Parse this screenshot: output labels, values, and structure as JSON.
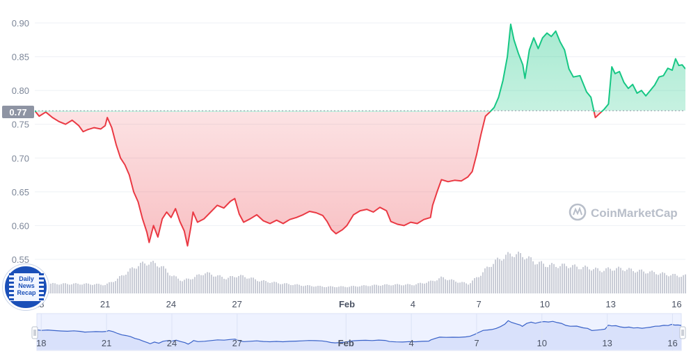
{
  "current_price_label": "0.77",
  "watermark": "CoinMarketCap",
  "badge": {
    "lines": [
      "Daily",
      "News",
      "Recap"
    ]
  },
  "colors": {
    "up": "#16c784",
    "down": "#ea3943",
    "volume": "#c9ccd6",
    "nav_fill": "#d9e1fb",
    "nav_line": "#3861c8"
  },
  "chart_data": {
    "type": "line",
    "ylim": [
      0.55,
      0.9
    ],
    "yticks": [
      "0.55",
      "0.60",
      "0.65",
      "0.70",
      "0.75",
      "0.80",
      "0.85",
      "0.90"
    ],
    "baseline": 0.77,
    "x_ticks": [
      {
        "label": "18",
        "day": 18
      },
      {
        "label": "21",
        "day": 21
      },
      {
        "label": "24",
        "day": 24
      },
      {
        "label": "27",
        "day": 27
      },
      {
        "label": "Feb",
        "day": 32
      },
      {
        "label": "4",
        "day": 35
      },
      {
        "label": "7",
        "day": 38
      },
      {
        "label": "10",
        "day": 41
      },
      {
        "label": "13",
        "day": 44
      },
      {
        "label": "16",
        "day": 47
      }
    ],
    "xlim": [
      17.8,
      47.4
    ],
    "price": [
      [
        17.8,
        0.77
      ],
      [
        18.0,
        0.762
      ],
      [
        18.3,
        0.768
      ],
      [
        18.6,
        0.76
      ],
      [
        18.9,
        0.754
      ],
      [
        19.2,
        0.75
      ],
      [
        19.5,
        0.756
      ],
      [
        19.8,
        0.748
      ],
      [
        20.0,
        0.739
      ],
      [
        20.2,
        0.742
      ],
      [
        20.5,
        0.745
      ],
      [
        20.8,
        0.743
      ],
      [
        21.0,
        0.748
      ],
      [
        21.1,
        0.76
      ],
      [
        21.3,
        0.745
      ],
      [
        21.5,
        0.72
      ],
      [
        21.7,
        0.7
      ],
      [
        21.9,
        0.69
      ],
      [
        22.1,
        0.675
      ],
      [
        22.3,
        0.65
      ],
      [
        22.5,
        0.635
      ],
      [
        22.7,
        0.61
      ],
      [
        22.9,
        0.59
      ],
      [
        23.0,
        0.575
      ],
      [
        23.2,
        0.6
      ],
      [
        23.4,
        0.583
      ],
      [
        23.6,
        0.61
      ],
      [
        23.8,
        0.62
      ],
      [
        24.0,
        0.612
      ],
      [
        24.2,
        0.625
      ],
      [
        24.4,
        0.606
      ],
      [
        24.6,
        0.592
      ],
      [
        24.75,
        0.57
      ],
      [
        24.9,
        0.598
      ],
      [
        25.0,
        0.62
      ],
      [
        25.2,
        0.605
      ],
      [
        25.5,
        0.61
      ],
      [
        25.8,
        0.62
      ],
      [
        26.1,
        0.63
      ],
      [
        26.4,
        0.626
      ],
      [
        26.7,
        0.636
      ],
      [
        26.9,
        0.64
      ],
      [
        27.1,
        0.617
      ],
      [
        27.3,
        0.605
      ],
      [
        27.6,
        0.61
      ],
      [
        27.9,
        0.616
      ],
      [
        28.2,
        0.607
      ],
      [
        28.5,
        0.603
      ],
      [
        28.8,
        0.608
      ],
      [
        29.1,
        0.603
      ],
      [
        29.4,
        0.609
      ],
      [
        29.7,
        0.612
      ],
      [
        30.0,
        0.616
      ],
      [
        30.3,
        0.621
      ],
      [
        30.6,
        0.619
      ],
      [
        30.9,
        0.615
      ],
      [
        31.1,
        0.606
      ],
      [
        31.3,
        0.594
      ],
      [
        31.5,
        0.588
      ],
      [
        31.8,
        0.594
      ],
      [
        32.0,
        0.6
      ],
      [
        32.3,
        0.616
      ],
      [
        32.6,
        0.622
      ],
      [
        32.9,
        0.624
      ],
      [
        33.2,
        0.62
      ],
      [
        33.5,
        0.627
      ],
      [
        33.8,
        0.622
      ],
      [
        34.0,
        0.606
      ],
      [
        34.3,
        0.602
      ],
      [
        34.6,
        0.6
      ],
      [
        34.9,
        0.605
      ],
      [
        35.2,
        0.603
      ],
      [
        35.5,
        0.609
      ],
      [
        35.8,
        0.612
      ],
      [
        35.9,
        0.63
      ],
      [
        36.1,
        0.65
      ],
      [
        36.3,
        0.668
      ],
      [
        36.6,
        0.665
      ],
      [
        36.9,
        0.667
      ],
      [
        37.2,
        0.666
      ],
      [
        37.5,
        0.672
      ],
      [
        37.7,
        0.68
      ],
      [
        37.9,
        0.705
      ],
      [
        38.1,
        0.735
      ],
      [
        38.3,
        0.762
      ],
      [
        38.5,
        0.768
      ],
      [
        38.7,
        0.775
      ],
      [
        38.9,
        0.79
      ],
      [
        39.1,
        0.815
      ],
      [
        39.3,
        0.85
      ],
      [
        39.45,
        0.898
      ],
      [
        39.6,
        0.875
      ],
      [
        39.8,
        0.855
      ],
      [
        40.0,
        0.838
      ],
      [
        40.1,
        0.818
      ],
      [
        40.3,
        0.86
      ],
      [
        40.5,
        0.878
      ],
      [
        40.7,
        0.862
      ],
      [
        40.9,
        0.878
      ],
      [
        41.1,
        0.885
      ],
      [
        41.3,
        0.88
      ],
      [
        41.5,
        0.888
      ],
      [
        41.7,
        0.872
      ],
      [
        41.9,
        0.86
      ],
      [
        42.1,
        0.832
      ],
      [
        42.3,
        0.82
      ],
      [
        42.6,
        0.822
      ],
      [
        42.9,
        0.798
      ],
      [
        43.1,
        0.79
      ],
      [
        43.3,
        0.76
      ],
      [
        43.5,
        0.766
      ],
      [
        43.7,
        0.772
      ],
      [
        43.9,
        0.78
      ],
      [
        44.05,
        0.835
      ],
      [
        44.2,
        0.825
      ],
      [
        44.4,
        0.828
      ],
      [
        44.6,
        0.812
      ],
      [
        44.8,
        0.803
      ],
      [
        45.0,
        0.809
      ],
      [
        45.2,
        0.796
      ],
      [
        45.4,
        0.8
      ],
      [
        45.6,
        0.792
      ],
      [
        45.8,
        0.8
      ],
      [
        46.0,
        0.808
      ],
      [
        46.2,
        0.82
      ],
      [
        46.4,
        0.822
      ],
      [
        46.6,
        0.833
      ],
      [
        46.8,
        0.83
      ],
      [
        46.95,
        0.847
      ],
      [
        47.1,
        0.837
      ],
      [
        47.25,
        0.838
      ],
      [
        47.4,
        0.832
      ]
    ],
    "volume_relative": [
      [
        17.8,
        0.25
      ],
      [
        19.0,
        0.24
      ],
      [
        20.0,
        0.24
      ],
      [
        21.0,
        0.22
      ],
      [
        21.5,
        0.35
      ],
      [
        22.0,
        0.55
      ],
      [
        22.5,
        0.72
      ],
      [
        23.0,
        0.78
      ],
      [
        23.5,
        0.7
      ],
      [
        24.0,
        0.45
      ],
      [
        24.5,
        0.32
      ],
      [
        25.0,
        0.4
      ],
      [
        25.5,
        0.52
      ],
      [
        26.0,
        0.45
      ],
      [
        26.5,
        0.38
      ],
      [
        27.0,
        0.45
      ],
      [
        27.5,
        0.4
      ],
      [
        28.0,
        0.32
      ],
      [
        29.0,
        0.25
      ],
      [
        30.0,
        0.2
      ],
      [
        31.0,
        0.17
      ],
      [
        32.0,
        0.17
      ],
      [
        33.0,
        0.2
      ],
      [
        34.0,
        0.22
      ],
      [
        35.0,
        0.22
      ],
      [
        35.8,
        0.3
      ],
      [
        36.3,
        0.4
      ],
      [
        36.8,
        0.32
      ],
      [
        37.5,
        0.24
      ],
      [
        38.0,
        0.45
      ],
      [
        38.5,
        0.72
      ],
      [
        39.0,
        0.9
      ],
      [
        39.5,
        1.0
      ],
      [
        40.0,
        0.95
      ],
      [
        40.5,
        0.8
      ],
      [
        41.0,
        0.72
      ],
      [
        41.5,
        0.7
      ],
      [
        42.0,
        0.7
      ],
      [
        42.5,
        0.66
      ],
      [
        43.0,
        0.64
      ],
      [
        43.5,
        0.58
      ],
      [
        44.0,
        0.62
      ],
      [
        44.5,
        0.62
      ],
      [
        45.0,
        0.58
      ],
      [
        45.5,
        0.55
      ],
      [
        46.0,
        0.52
      ],
      [
        46.5,
        0.48
      ],
      [
        47.0,
        0.45
      ],
      [
        47.4,
        0.44
      ]
    ]
  }
}
